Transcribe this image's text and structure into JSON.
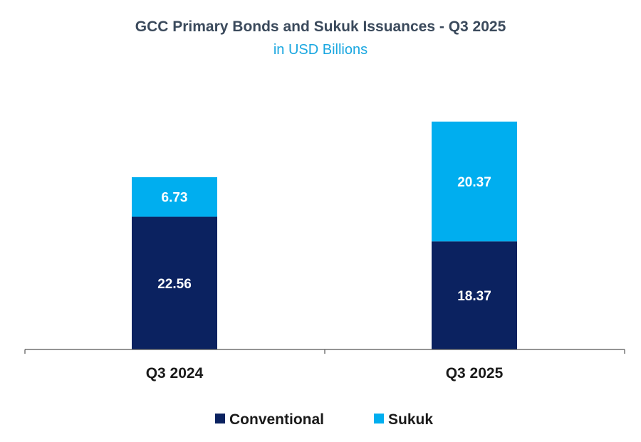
{
  "chart_data": {
    "type": "bar",
    "stacked": true,
    "title": "GCC Primary Bonds and Sukuk Issuances - Q3 2025",
    "subtitle": "in USD Billions",
    "categories": [
      "Q3 2024",
      "Q3 2025"
    ],
    "series": [
      {
        "name": "Conventional",
        "color": "#0b2260",
        "values": [
          22.56,
          18.37
        ]
      },
      {
        "name": "Sukuk",
        "color": "#00aeef",
        "values": [
          6.73,
          20.37
        ]
      }
    ],
    "legend_position": "bottom",
    "grid": false,
    "ylim": [
      0,
      40
    ]
  }
}
